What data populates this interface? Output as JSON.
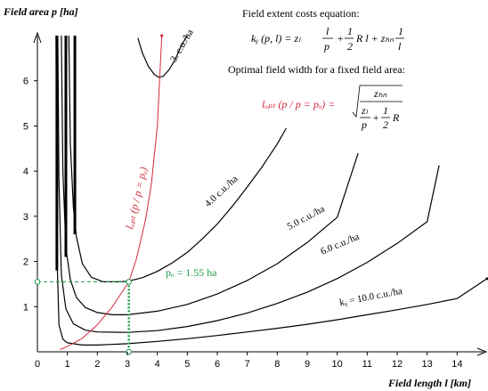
{
  "chart_data": {
    "type": "line",
    "xlabel": "Field length  l [km]",
    "ylabel": "Field area  p [ha]",
    "xlim": [
      0,
      15
    ],
    "ylim": [
      0,
      7
    ],
    "xticks": [
      "0",
      "1",
      "2",
      "3",
      "4",
      "5",
      "6",
      "7",
      "8",
      "9",
      "10",
      "11",
      "12",
      "13",
      "14"
    ],
    "yticks": [
      "0",
      "1",
      "2",
      "3",
      "4",
      "5",
      "6"
    ],
    "grid": false,
    "equation_title": "Field extent costs equation:",
    "optimal_title": "Optimal field width for a fixed field area:",
    "optimal_point_label": "pₒ = 1.55 ha",
    "optimal_point": {
      "x": 3.05,
      "y": 1.55
    },
    "red_curve_label": "lₒₚₜ (p / p = pₒ)",
    "series": [
      {
        "name": "3. c.u./ha",
        "cost": 3.0,
        "x": [
          3.35,
          3.5,
          3.7,
          3.9,
          4.05,
          4.2,
          4.4,
          4.6,
          4.8,
          5.0
        ],
        "y": [
          6.95,
          6.62,
          6.32,
          6.14,
          6.08,
          6.1,
          6.25,
          6.48,
          6.78,
          7.0
        ]
      },
      {
        "name": "4.0 c.u./ha",
        "cost": 4.0,
        "x": [
          1.05,
          1.1,
          1.2,
          1.3,
          1.5,
          1.8,
          2.2,
          2.7,
          3.0,
          3.5,
          4.0,
          4.5,
          5.0,
          5.5,
          6.0,
          6.5,
          7.0,
          7.5,
          8.0,
          8.3
        ],
        "y": [
          7.0,
          4.6,
          3.2,
          2.55,
          1.95,
          1.65,
          1.55,
          1.55,
          1.56,
          1.64,
          1.78,
          1.97,
          2.2,
          2.5,
          2.83,
          3.22,
          3.65,
          4.1,
          4.6,
          4.95
        ]
      },
      {
        "name": "5.0 c.u./ha",
        "cost": 5.0,
        "x": [
          0.8,
          0.85,
          0.95,
          1.1,
          1.3,
          1.6,
          2.0,
          2.5,
          3.0,
          4.0,
          5.0,
          6.0,
          7.0,
          8.0,
          9.0,
          10.0,
          10.7
        ],
        "y": [
          7.0,
          4.0,
          2.3,
          1.6,
          1.2,
          0.98,
          0.87,
          0.82,
          0.82,
          0.9,
          1.05,
          1.28,
          1.58,
          1.95,
          2.42,
          2.98,
          4.4
        ]
      },
      {
        "name": "6.0 c.u./ha",
        "cost": 6.0,
        "x": [
          0.68,
          0.72,
          0.8,
          0.95,
          1.2,
          1.6,
          2.0,
          3.0,
          4.0,
          5.0,
          6.0,
          7.0,
          8.0,
          9.0,
          10.0,
          11.0,
          12.0,
          13.0,
          13.4
        ],
        "y": [
          7.0,
          3.8,
          1.7,
          0.95,
          0.62,
          0.48,
          0.44,
          0.43,
          0.47,
          0.56,
          0.69,
          0.86,
          1.07,
          1.32,
          1.62,
          1.98,
          2.4,
          2.88,
          4.13
        ]
      },
      {
        "name": "kᵧ = 10.0 c.u./ha",
        "cost": 10.0,
        "x": [
          0.62,
          0.66,
          0.72,
          0.85,
          1.0,
          1.5,
          2.0,
          3.0,
          4.0,
          5.0,
          6.0,
          7.0,
          8.0,
          9.0,
          10.0,
          11.0,
          12.0,
          13.0,
          14.0,
          15.0
        ],
        "y": [
          7.0,
          2.0,
          0.6,
          0.28,
          0.2,
          0.15,
          0.15,
          0.18,
          0.23,
          0.29,
          0.36,
          0.44,
          0.52,
          0.61,
          0.71,
          0.82,
          0.93,
          1.05,
          1.18,
          1.62
        ]
      },
      {
        "name": "lₒₚₜ",
        "cost": 0,
        "x": [
          0.75,
          1.0,
          1.5,
          2.0,
          2.5,
          3.05,
          3.3,
          3.6,
          3.8,
          4.0,
          4.15
        ],
        "y": [
          0.05,
          0.12,
          0.3,
          0.6,
          1.0,
          1.55,
          2.05,
          2.9,
          3.7,
          5.0,
          7.0
        ]
      }
    ],
    "annotations": [
      {
        "text": "3. c.u./ha",
        "x": 4.6,
        "y": 6.4,
        "angle": -60
      },
      {
        "text": "4.0 c.u./ha",
        "x": 5.7,
        "y": 3.2,
        "angle": -43
      },
      {
        "text": "5.0 c.u./ha",
        "x": 8.4,
        "y": 2.7,
        "angle": -28
      },
      {
        "text": "6.0 c.u./ha",
        "x": 9.5,
        "y": 2.15,
        "angle": -23
      },
      {
        "text": "kᵧ = 10.0 c.u./ha",
        "x": 10.1,
        "y": 1.02,
        "angle": -11
      }
    ]
  },
  "equation": {
    "lhs": "kᵧ (p, l) = zₗ",
    "frac1_num": "l",
    "frac1_den": "p",
    "plus": "+",
    "frac2_num": "1",
    "frac2_den": "2",
    "mid": "R l + zₕₙ",
    "frac3_num": "1",
    "frac3_den": "l"
  },
  "optimal_equation": {
    "lhs": "lₒₚₜ (p / p = pₒ) =",
    "num": "zₕₙ",
    "den_frac_num": "zₗ",
    "den_frac_den": "p",
    "den_plus": "+",
    "den_half_num": "1",
    "den_half_den": "2",
    "den_R": "R"
  },
  "colors": {
    "axis": "#000000",
    "curve": "#000000",
    "red": "#d42a3a",
    "green": "#1f9a4a"
  }
}
